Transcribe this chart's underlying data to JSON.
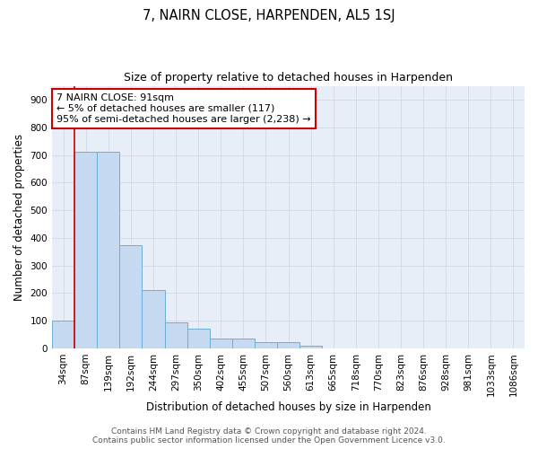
{
  "title": "7, NAIRN CLOSE, HARPENDEN, AL5 1SJ",
  "subtitle": "Size of property relative to detached houses in Harpenden",
  "xlabel": "Distribution of detached houses by size in Harpenden",
  "ylabel": "Number of detached properties",
  "bar_labels": [
    "34sqm",
    "87sqm",
    "139sqm",
    "192sqm",
    "244sqm",
    "297sqm",
    "350sqm",
    "402sqm",
    "455sqm",
    "507sqm",
    "560sqm",
    "613sqm",
    "665sqm",
    "718sqm",
    "770sqm",
    "823sqm",
    "876sqm",
    "928sqm",
    "981sqm",
    "1033sqm",
    "1086sqm"
  ],
  "bar_values": [
    100,
    710,
    710,
    375,
    210,
    95,
    72,
    35,
    35,
    22,
    22,
    10,
    0,
    0,
    0,
    0,
    0,
    0,
    0,
    0,
    0
  ],
  "bar_color": "#c5d9f0",
  "bar_edge_color": "#6baed6",
  "property_line_color": "#cc0000",
  "annotation_text": "7 NAIRN CLOSE: 91sqm\n← 5% of detached houses are smaller (117)\n95% of semi-detached houses are larger (2,238) →",
  "annotation_box_color": "#ffffff",
  "annotation_box_edge": "#cc0000",
  "grid_color": "#d0d8e8",
  "background_color": "#e8eef8",
  "ylim": [
    0,
    950
  ],
  "yticks": [
    0,
    100,
    200,
    300,
    400,
    500,
    600,
    700,
    800,
    900
  ],
  "footer_line1": "Contains HM Land Registry data © Crown copyright and database right 2024.",
  "footer_line2": "Contains public sector information licensed under the Open Government Licence v3.0.",
  "title_fontsize": 10.5,
  "subtitle_fontsize": 9,
  "axis_label_fontsize": 8.5,
  "tick_fontsize": 7.5,
  "annotation_fontsize": 8,
  "footer_fontsize": 6.5
}
